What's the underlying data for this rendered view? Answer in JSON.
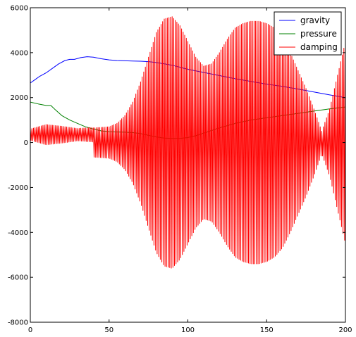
{
  "chart_data": {
    "type": "line",
    "title": "",
    "xlabel": "",
    "ylabel": "",
    "xlim": [
      0,
      200
    ],
    "ylim": [
      -8000,
      6000
    ],
    "xticks": [
      0,
      50,
      100,
      150,
      200
    ],
    "yticks": [
      -8000,
      -6000,
      -4000,
      -2000,
      0,
      2000,
      4000,
      6000
    ],
    "grid": false,
    "legend_position": "top-right",
    "series": [
      {
        "name": "gravity",
        "color": "#0000ff",
        "x": [
          0,
          3,
          6,
          10,
          14,
          18,
          22,
          25,
          28,
          32,
          36,
          40,
          45,
          50,
          55,
          60,
          65,
          70,
          75,
          80,
          85,
          90,
          95,
          100,
          110,
          120,
          130,
          140,
          150,
          160,
          170,
          180,
          190,
          200
        ],
        "y": [
          2650,
          2800,
          2950,
          3100,
          3300,
          3500,
          3650,
          3700,
          3700,
          3780,
          3820,
          3800,
          3730,
          3680,
          3650,
          3640,
          3630,
          3620,
          3600,
          3560,
          3500,
          3440,
          3350,
          3260,
          3120,
          2980,
          2840,
          2720,
          2600,
          2500,
          2380,
          2250,
          2120,
          2000
        ]
      },
      {
        "name": "pressure",
        "color": "#008000",
        "x": [
          0,
          5,
          10,
          13,
          16,
          20,
          25,
          30,
          35,
          40,
          45,
          50,
          55,
          60,
          65,
          70,
          75,
          80,
          85,
          90,
          95,
          100,
          105,
          110,
          120,
          130,
          140,
          150,
          160,
          170,
          180,
          190,
          200
        ],
        "y": [
          1800,
          1720,
          1650,
          1650,
          1450,
          1200,
          1000,
          850,
          700,
          600,
          520,
          480,
          470,
          460,
          440,
          400,
          320,
          250,
          200,
          180,
          180,
          220,
          300,
          420,
          650,
          850,
          1000,
          1100,
          1200,
          1300,
          1400,
          1500,
          1580
        ]
      },
      {
        "name": "damping",
        "color": "#ff0000",
        "x": [
          0,
          10,
          20,
          30,
          40,
          50,
          55,
          60,
          65,
          70,
          75,
          80,
          85,
          90,
          95,
          100,
          105,
          110,
          115,
          120,
          125,
          130,
          135,
          140,
          145,
          150,
          155,
          160,
          165,
          170,
          175,
          180,
          185,
          190,
          195,
          200
        ],
        "y": [
          500,
          900,
          750,
          550,
          650,
          700,
          850,
          1200,
          1800,
          2700,
          3800,
          4900,
          5500,
          5600,
          5200,
          4500,
          3800,
          3400,
          3500,
          4000,
          4600,
          5100,
          5300,
          5400,
          5400,
          5300,
          5100,
          4700,
          4000,
          3200,
          2400,
          1500,
          500,
          1500,
          3000,
          4500
        ]
      }
    ]
  }
}
